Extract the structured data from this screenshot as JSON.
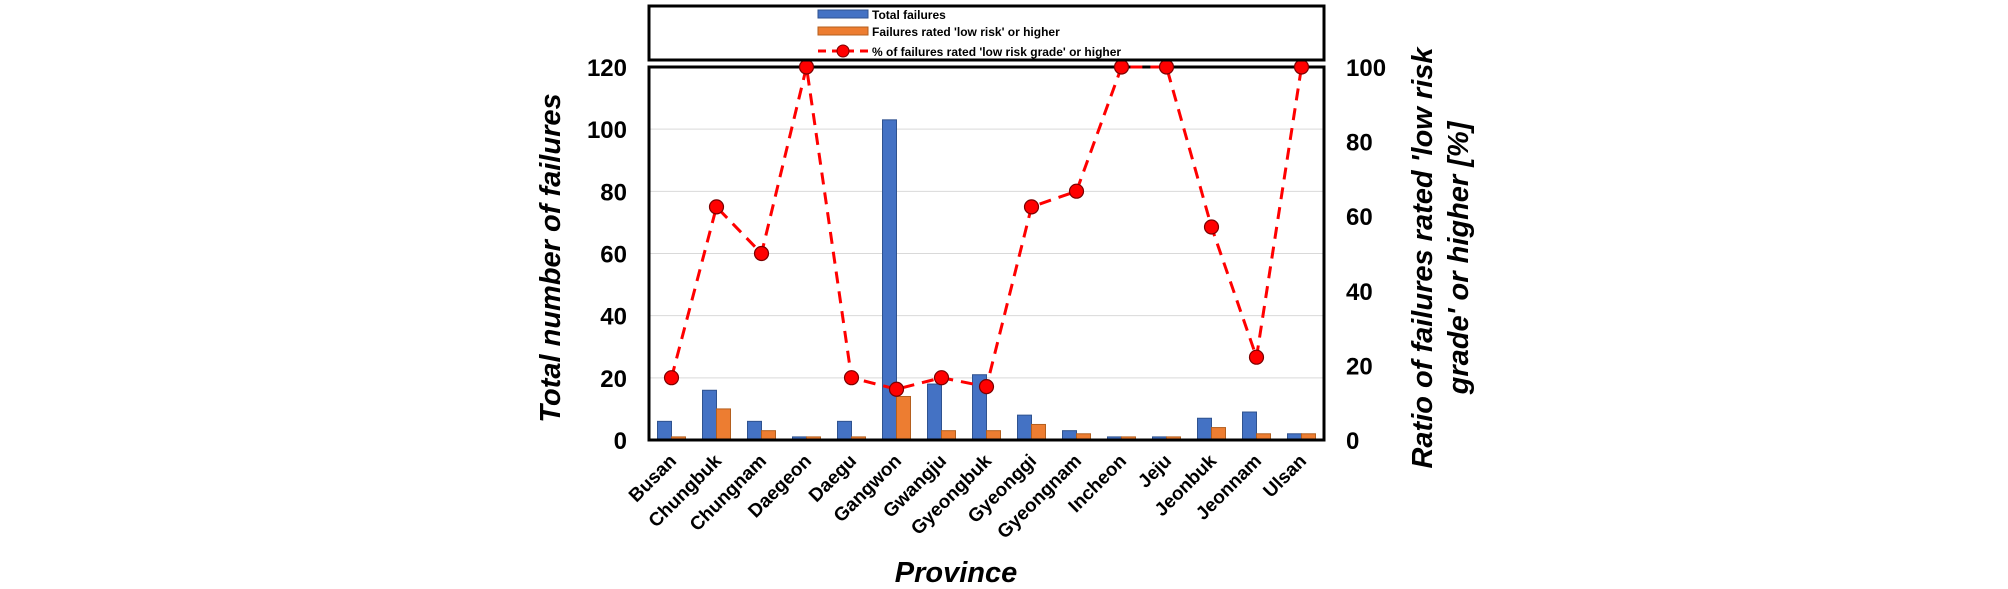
{
  "chart_data": {
    "type": "bar+line",
    "categories": [
      "Busan",
      "Chungbuk",
      "Chungnam",
      "Daegeon",
      "Daegu",
      "Gangwon",
      "Gwangju",
      "Gyeongbuk",
      "Gyeonggi",
      "Gyeongnam",
      "Incheon",
      "Jeju",
      "Jeonbuk",
      "Jeonnam",
      "Ulsan"
    ],
    "series": [
      {
        "name": "Total failures",
        "type": "bar",
        "axis": "left",
        "color": "#4472C4",
        "values": [
          6,
          16,
          6,
          1,
          6,
          103,
          18,
          21,
          8,
          3,
          1,
          1,
          7,
          9,
          2
        ]
      },
      {
        "name": "Failures rated 'low risk' or higher",
        "type": "bar",
        "axis": "left",
        "color": "#ED7D31",
        "values": [
          1,
          10,
          3,
          1,
          1,
          14,
          3,
          3,
          5,
          2,
          1,
          1,
          4,
          2,
          2
        ]
      },
      {
        "name": "% of failures rated 'low risk grade' or higher",
        "type": "line",
        "axis": "right",
        "color": "#FF0000",
        "values": [
          16.7,
          62.5,
          50,
          100,
          16.7,
          13.6,
          16.7,
          14.3,
          62.5,
          66.7,
          100,
          100,
          57.1,
          22.2,
          100
        ]
      }
    ],
    "xlabel": "Province",
    "ylabel": "Total number of failures",
    "ylabel_right_line1": "Ratio of failures rated 'low risk",
    "ylabel_right_line2": "grade' or higher [%]",
    "ylim": [
      0,
      120
    ],
    "yticks": [
      "0",
      "20",
      "40",
      "60",
      "80",
      "100",
      "120"
    ],
    "y2lim": [
      0,
      100
    ],
    "y2ticks": [
      "0",
      "20",
      "40",
      "60",
      "80",
      "100"
    ],
    "legend_position": "top"
  }
}
